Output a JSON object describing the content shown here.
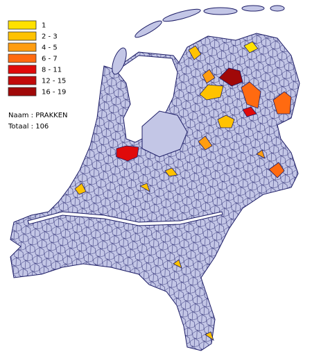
{
  "legend": [
    {
      "label": "1",
      "color": "#ffe100"
    },
    {
      "label": "2 - 3",
      "color": "#ffc200"
    },
    {
      "label": "4 - 5",
      "color": "#ff9d10"
    },
    {
      "label": "6 - 7",
      "color": "#ff6a10"
    },
    {
      "label": "8 - 11",
      "color": "#e00a0a"
    },
    {
      "label": "12 - 15",
      "color": "#c20a0a"
    },
    {
      "label": "16 - 19",
      "color": "#a00808"
    }
  ],
  "info": {
    "name": "Naam : PRAKKEN",
    "total": "Totaal : 106"
  }
}
